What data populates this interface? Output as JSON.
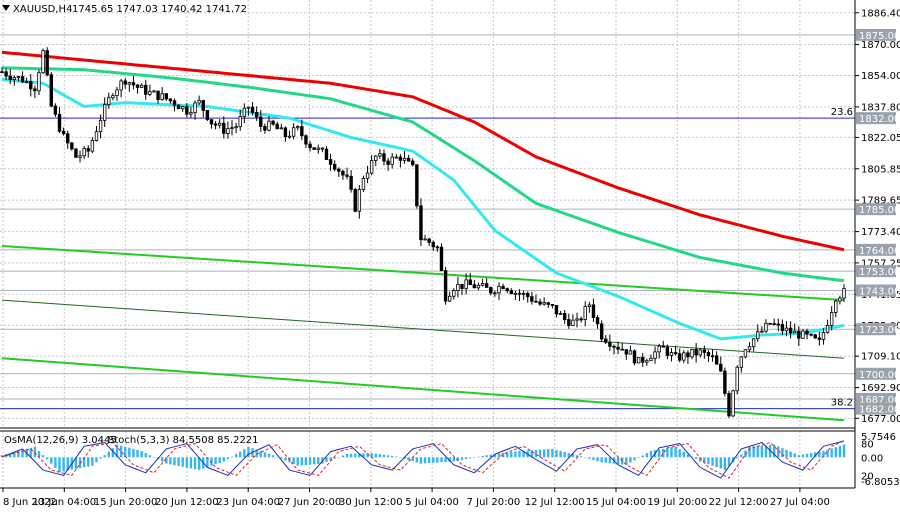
{
  "header": {
    "title": "XAUUSD,H4",
    "ohlc": "1745.65 1747.03 1740.42 1741.72"
  },
  "sub_header": {
    "osma": "OsMA(12,26,9) 3.0445",
    "stoch": "Stoch(5,3,3) 84.5508 85.2221"
  },
  "colors": {
    "background": "#ffffff",
    "grid": "#c8c8c8",
    "candles": "#000000",
    "ema_red": "#ee0000",
    "ema_green": "#22d888",
    "ema_cyan": "#33e8f0",
    "channel": "#22cc22",
    "fib": "#3333cc",
    "tag_bg": "#9aa3ad",
    "osma": "#33b6ee",
    "stoch_main": "#1a2fb8",
    "stoch_signal": "#dd2222"
  },
  "chart_data": {
    "type": "candlestick",
    "symbol": "XAUUSD",
    "timeframe": "H4",
    "ylim": [
      1672,
      1893
    ],
    "y_ticks": [
      "1886.40",
      "1870.00",
      "1854.00",
      "1837.80",
      "1822.05",
      "1805.85",
      "1789.65",
      "1773.40",
      "1757.25",
      "1741.05",
      "1725.00",
      "1709.10",
      "1692.90",
      "1677.00"
    ],
    "x_labels": [
      "8 Jun 2022",
      "13 Jun 04:00",
      "15 Jun 20:00",
      "20 Jun 12:00",
      "23 Jun 04:00",
      "27 Jun 20:00",
      "30 Jun 12:00",
      "5 Jul 04:00",
      "7 Jul 20:00",
      "12 Jul 12:00",
      "15 Jul 04:00",
      "19 Jul 20:00",
      "22 Jul 12:00",
      "27 Jul 04:00"
    ],
    "price_levels": [
      {
        "label": "1875.00",
        "value": 1875.0
      },
      {
        "label": "1832.00",
        "value": 1832.0
      },
      {
        "label": "1785.00",
        "value": 1785.0
      },
      {
        "label": "1764.00",
        "value": 1764.0
      },
      {
        "label": "1753.00",
        "value": 1753.0
      },
      {
        "label": "1743.00",
        "value": 1743.0
      },
      {
        "label": "1723.00",
        "value": 1723.0
      },
      {
        "label": "1700.00",
        "value": 1700.0
      },
      {
        "label": "1687.00",
        "value": 1687.0
      },
      {
        "label": "1682.00",
        "value": 1682.0
      }
    ],
    "fib_levels": [
      {
        "label": "23.6",
        "value": 1832.0
      },
      {
        "label": "38.2",
        "value": 1682.0
      }
    ],
    "price_anchors": [
      [
        0,
        1856
      ],
      [
        2,
        1854
      ],
      [
        5,
        1852
      ],
      [
        8,
        1848
      ],
      [
        10,
        1866
      ],
      [
        12,
        1838
      ],
      [
        15,
        1822
      ],
      [
        18,
        1812
      ],
      [
        21,
        1815
      ],
      [
        24,
        1832
      ],
      [
        27,
        1846
      ],
      [
        30,
        1852
      ],
      [
        33,
        1848
      ],
      [
        36,
        1845
      ],
      [
        39,
        1843
      ],
      [
        42,
        1840
      ],
      [
        45,
        1836
      ],
      [
        48,
        1840
      ],
      [
        51,
        1830
      ],
      [
        54,
        1826
      ],
      [
        57,
        1828
      ],
      [
        60,
        1838
      ],
      [
        63,
        1828
      ],
      [
        66,
        1828
      ],
      [
        69,
        1823
      ],
      [
        72,
        1826
      ],
      [
        75,
        1818
      ],
      [
        78,
        1814
      ],
      [
        81,
        1808
      ],
      [
        84,
        1800
      ],
      [
        86,
        1786
      ],
      [
        88,
        1802
      ],
      [
        91,
        1812
      ],
      [
        94,
        1810
      ],
      [
        97,
        1812
      ],
      [
        100,
        1806
      ],
      [
        102,
        1770
      ],
      [
        104,
        1768
      ],
      [
        106,
        1765
      ],
      [
        108,
        1740
      ],
      [
        110,
        1745
      ],
      [
        113,
        1746
      ],
      [
        116,
        1745
      ],
      [
        119,
        1743
      ],
      [
        122,
        1746
      ],
      [
        125,
        1742
      ],
      [
        128,
        1740
      ],
      [
        131,
        1736
      ],
      [
        134,
        1734
      ],
      [
        137,
        1728
      ],
      [
        140,
        1726
      ],
      [
        143,
        1736
      ],
      [
        146,
        1720
      ],
      [
        149,
        1715
      ],
      [
        152,
        1712
      ],
      [
        155,
        1706
      ],
      [
        158,
        1710
      ],
      [
        161,
        1713
      ],
      [
        164,
        1708
      ],
      [
        167,
        1710
      ],
      [
        170,
        1711
      ],
      [
        173,
        1708
      ],
      [
        175,
        1700
      ],
      [
        177,
        1680
      ],
      [
        179,
        1705
      ],
      [
        181,
        1714
      ],
      [
        184,
        1720
      ],
      [
        187,
        1726
      ],
      [
        190,
        1723
      ],
      [
        193,
        1721
      ],
      [
        196,
        1719
      ],
      [
        199,
        1716
      ],
      [
        201,
        1727
      ],
      [
        203,
        1740
      ],
      [
        205,
        1742
      ]
    ],
    "ma_red_anchors": [
      [
        0,
        1866
      ],
      [
        20,
        1862
      ],
      [
        50,
        1856
      ],
      [
        80,
        1850
      ],
      [
        100,
        1843
      ],
      [
        115,
        1830
      ],
      [
        130,
        1812
      ],
      [
        150,
        1796
      ],
      [
        170,
        1782
      ],
      [
        190,
        1771
      ],
      [
        205,
        1764
      ]
    ],
    "ma_green_anchors": [
      [
        0,
        1858
      ],
      [
        20,
        1857
      ],
      [
        40,
        1853
      ],
      [
        60,
        1848
      ],
      [
        80,
        1842
      ],
      [
        100,
        1830
      ],
      [
        115,
        1810
      ],
      [
        130,
        1788
      ],
      [
        150,
        1773
      ],
      [
        170,
        1760
      ],
      [
        190,
        1752
      ],
      [
        205,
        1748
      ]
    ],
    "ma_cyan_anchors": [
      [
        0,
        1852
      ],
      [
        10,
        1850
      ],
      [
        20,
        1838
      ],
      [
        30,
        1840
      ],
      [
        50,
        1838
      ],
      [
        70,
        1832
      ],
      [
        85,
        1822
      ],
      [
        100,
        1815
      ],
      [
        110,
        1800
      ],
      [
        120,
        1774
      ],
      [
        135,
        1752
      ],
      [
        150,
        1740
      ],
      [
        165,
        1726
      ],
      [
        175,
        1718
      ],
      [
        185,
        1720
      ],
      [
        195,
        1721
      ],
      [
        205,
        1725
      ]
    ],
    "channel_lines": [
      {
        "name": "channel-upper",
        "from": [
          0,
          1766
        ],
        "to": [
          205,
          1738
        ]
      },
      {
        "name": "channel-middle",
        "from": [
          0,
          1738
        ],
        "to": [
          205,
          1708
        ]
      },
      {
        "name": "channel-lower",
        "from": [
          0,
          1708
        ],
        "to": [
          205,
          1676
        ]
      }
    ],
    "indicator": {
      "osma_ylim": [
        -6.8053,
        5.7546
      ],
      "osma_ticks": [
        "5.7546",
        "0.00",
        "-6.8053"
      ],
      "stoch_ticks": [
        "80",
        "20"
      ],
      "osma_anchors": [
        [
          0,
          0.5
        ],
        [
          8,
          2.5
        ],
        [
          14,
          -3.5
        ],
        [
          22,
          -2
        ],
        [
          28,
          3
        ],
        [
          34,
          1.5
        ],
        [
          40,
          -1.5
        ],
        [
          48,
          -3
        ],
        [
          54,
          -1
        ],
        [
          60,
          2.5
        ],
        [
          66,
          0.5
        ],
        [
          72,
          -2
        ],
        [
          78,
          -1.5
        ],
        [
          84,
          0.8
        ],
        [
          90,
          1
        ],
        [
          96,
          0.2
        ],
        [
          102,
          -1.5
        ],
        [
          110,
          -1
        ],
        [
          118,
          0.5
        ],
        [
          126,
          1.5
        ],
        [
          134,
          2
        ],
        [
          140,
          0.5
        ],
        [
          146,
          -1.2
        ],
        [
          152,
          -1.8
        ],
        [
          158,
          1.5
        ],
        [
          164,
          2.5
        ],
        [
          170,
          -1
        ],
        [
          176,
          -3
        ],
        [
          182,
          2.5
        ],
        [
          188,
          3
        ],
        [
          194,
          0.5
        ],
        [
          200,
          1.5
        ],
        [
          205,
          3.0
        ]
      ],
      "stoch_anchors": [
        [
          0,
          55
        ],
        [
          5,
          70
        ],
        [
          10,
          30
        ],
        [
          15,
          20
        ],
        [
          20,
          75
        ],
        [
          25,
          82
        ],
        [
          30,
          40
        ],
        [
          35,
          25
        ],
        [
          40,
          70
        ],
        [
          45,
          80
        ],
        [
          50,
          35
        ],
        [
          55,
          20
        ],
        [
          60,
          60
        ],
        [
          65,
          78
        ],
        [
          70,
          30
        ],
        [
          75,
          20
        ],
        [
          80,
          65
        ],
        [
          85,
          75
        ],
        [
          90,
          40
        ],
        [
          95,
          30
        ],
        [
          100,
          70
        ],
        [
          105,
          80
        ],
        [
          110,
          40
        ],
        [
          115,
          25
        ],
        [
          120,
          60
        ],
        [
          125,
          75
        ],
        [
          130,
          50
        ],
        [
          135,
          28
        ],
        [
          140,
          70
        ],
        [
          145,
          78
        ],
        [
          150,
          40
        ],
        [
          155,
          20
        ],
        [
          160,
          72
        ],
        [
          165,
          80
        ],
        [
          170,
          35
        ],
        [
          175,
          15
        ],
        [
          180,
          70
        ],
        [
          185,
          82
        ],
        [
          190,
          45
        ],
        [
          195,
          30
        ],
        [
          200,
          75
        ],
        [
          205,
          85
        ]
      ]
    }
  }
}
